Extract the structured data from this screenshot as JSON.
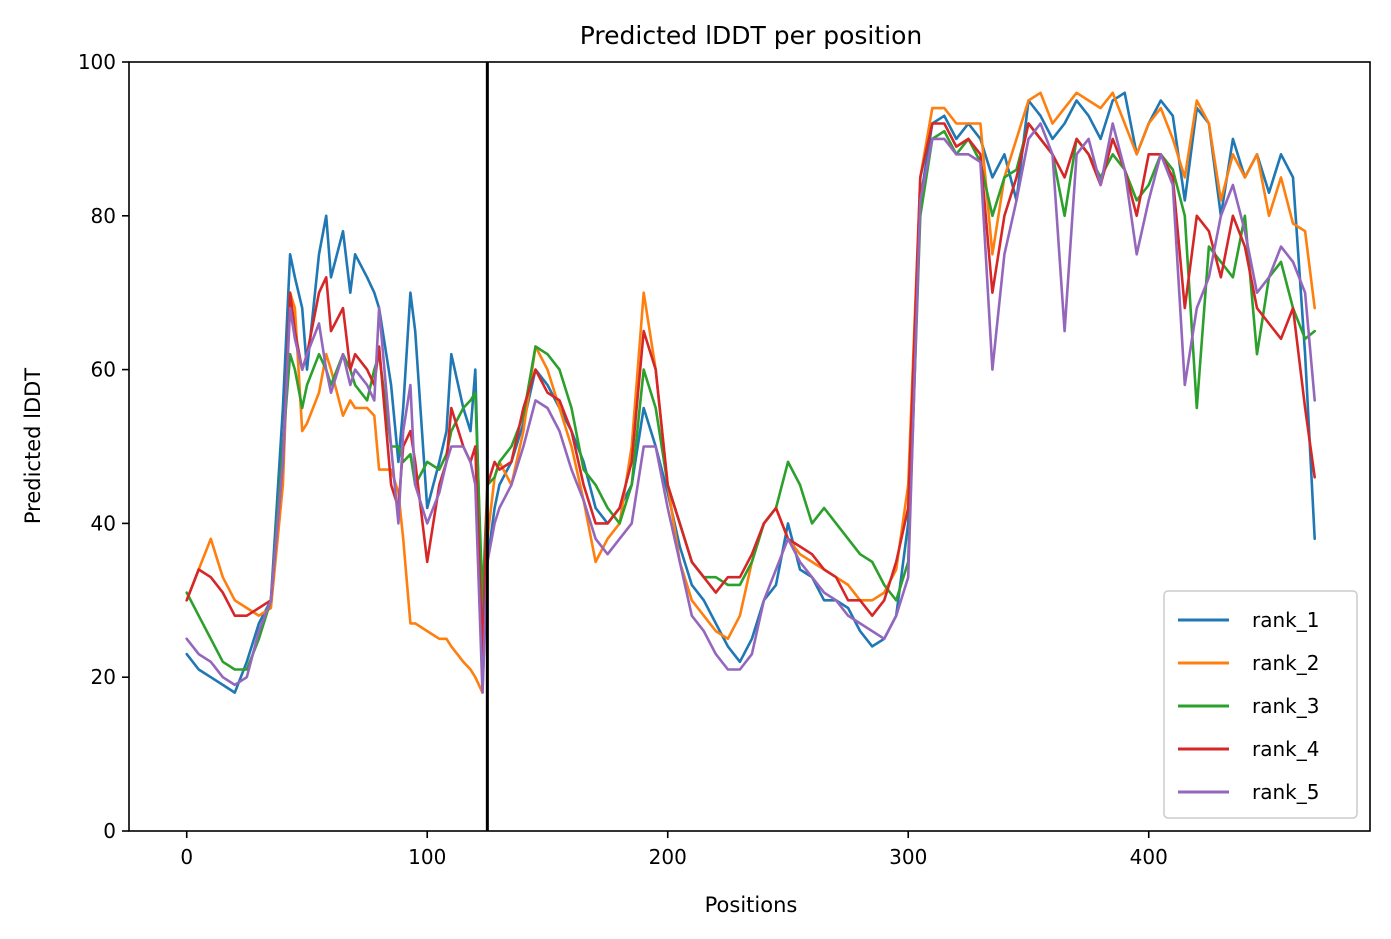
{
  "chart_data": {
    "type": "line",
    "title": "Predicted lDDT per position",
    "xlabel": "Positions",
    "ylabel": "Predicted lDDT",
    "xlim": [
      -24,
      492
    ],
    "ylim": [
      0,
      100
    ],
    "xticks": [
      0,
      100,
      200,
      300,
      400
    ],
    "yticks": [
      0,
      20,
      40,
      60,
      80,
      100
    ],
    "grid": false,
    "legend_position": "lower right",
    "vline": 125,
    "x": [
      0,
      5,
      10,
      15,
      20,
      25,
      30,
      35,
      40,
      43,
      45,
      48,
      50,
      55,
      58,
      60,
      65,
      68,
      70,
      75,
      78,
      80,
      85,
      88,
      90,
      93,
      95,
      100,
      105,
      108,
      110,
      115,
      118,
      120,
      123,
      125,
      128,
      130,
      135,
      140,
      145,
      150,
      155,
      160,
      165,
      170,
      175,
      180,
      185,
      190,
      195,
      200,
      205,
      210,
      215,
      220,
      225,
      230,
      235,
      240,
      245,
      250,
      255,
      260,
      265,
      270,
      275,
      280,
      285,
      290,
      295,
      300,
      305,
      310,
      315,
      320,
      325,
      330,
      335,
      340,
      345,
      350,
      355,
      360,
      365,
      370,
      375,
      380,
      385,
      390,
      395,
      400,
      405,
      410,
      415,
      420,
      425,
      430,
      435,
      440,
      445,
      450,
      455,
      460,
      465,
      469
    ],
    "series": [
      {
        "name": "rank_1",
        "color": "#1f77b4",
        "values": [
          23,
          21,
          20,
          19,
          18,
          22,
          27,
          30,
          55,
          75,
          72,
          68,
          60,
          75,
          80,
          72,
          78,
          70,
          75,
          72,
          70,
          68,
          58,
          48,
          55,
          70,
          65,
          42,
          48,
          52,
          62,
          55,
          52,
          60,
          25,
          35,
          42,
          45,
          48,
          53,
          60,
          58,
          55,
          52,
          48,
          42,
          40,
          42,
          45,
          55,
          50,
          44,
          37,
          32,
          30,
          27,
          24,
          22,
          25,
          30,
          32,
          40,
          34,
          33,
          30,
          30,
          29,
          26,
          24,
          25,
          28,
          40,
          82,
          92,
          93,
          90,
          92,
          90,
          85,
          88,
          82,
          95,
          93,
          90,
          92,
          95,
          93,
          90,
          95,
          96,
          88,
          92,
          95,
          93,
          82,
          94,
          92,
          80,
          90,
          85,
          88,
          83,
          88,
          85,
          62,
          38
        ]
      },
      {
        "name": "rank_2",
        "color": "#ff7f0e",
        "values": [
          30,
          34,
          38,
          33,
          30,
          29,
          28,
          29,
          45,
          70,
          68,
          52,
          53,
          57,
          62,
          60,
          54,
          56,
          55,
          55,
          54,
          47,
          47,
          44,
          38,
          27,
          27,
          26,
          25,
          25,
          24,
          22,
          21,
          20,
          18,
          38,
          46,
          48,
          45,
          52,
          63,
          60,
          55,
          50,
          43,
          35,
          38,
          40,
          50,
          70,
          60,
          45,
          35,
          30,
          28,
          26,
          25,
          28,
          35,
          40,
          42,
          38,
          36,
          35,
          34,
          33,
          32,
          30,
          30,
          31,
          34,
          45,
          85,
          94,
          94,
          92,
          92,
          92,
          75,
          85,
          90,
          95,
          96,
          92,
          94,
          96,
          95,
          94,
          96,
          92,
          88,
          92,
          94,
          90,
          85,
          95,
          92,
          82,
          88,
          85,
          88,
          80,
          85,
          79,
          78,
          68
        ]
      },
      {
        "name": "rank_3",
        "color": "#2ca02c",
        "values": [
          31,
          28,
          25,
          22,
          21,
          21,
          25,
          30,
          50,
          62,
          60,
          55,
          58,
          62,
          60,
          58,
          62,
          60,
          58,
          56,
          60,
          62,
          50,
          50,
          48,
          49,
          45,
          48,
          47,
          49,
          52,
          55,
          56,
          57,
          30,
          45,
          46,
          48,
          50,
          54,
          63,
          62,
          60,
          55,
          47,
          45,
          42,
          40,
          45,
          60,
          55,
          45,
          40,
          35,
          33,
          33,
          32,
          32,
          35,
          40,
          42,
          48,
          45,
          40,
          42,
          40,
          38,
          36,
          35,
          32,
          30,
          35,
          80,
          90,
          91,
          88,
          90,
          87,
          80,
          85,
          86,
          92,
          90,
          88,
          80,
          90,
          88,
          85,
          88,
          86,
          82,
          84,
          88,
          86,
          80,
          55,
          76,
          74,
          72,
          80,
          62,
          72,
          74,
          68,
          64,
          65
        ]
      },
      {
        "name": "rank_4",
        "color": "#d62728",
        "values": [
          30,
          34,
          33,
          31,
          28,
          28,
          29,
          30,
          48,
          70,
          65,
          60,
          62,
          70,
          72,
          65,
          68,
          60,
          62,
          60,
          58,
          63,
          45,
          42,
          50,
          52,
          48,
          35,
          45,
          48,
          55,
          50,
          48,
          50,
          22,
          45,
          48,
          47,
          48,
          55,
          60,
          57,
          56,
          52,
          45,
          40,
          40,
          42,
          48,
          65,
          60,
          45,
          40,
          35,
          33,
          31,
          33,
          33,
          36,
          40,
          42,
          38,
          37,
          36,
          34,
          33,
          30,
          30,
          28,
          30,
          35,
          42,
          85,
          92,
          92,
          89,
          90,
          88,
          70,
          80,
          85,
          92,
          90,
          88,
          85,
          90,
          88,
          84,
          90,
          86,
          80,
          88,
          88,
          85,
          68,
          80,
          78,
          72,
          80,
          76,
          68,
          66,
          64,
          68,
          55,
          46
        ]
      },
      {
        "name": "rank_5",
        "color": "#9467bd",
        "values": [
          25,
          23,
          22,
          20,
          19,
          20,
          26,
          30,
          48,
          68,
          64,
          60,
          62,
          66,
          60,
          57,
          62,
          58,
          60,
          58,
          56,
          68,
          50,
          40,
          52,
          58,
          45,
          40,
          44,
          48,
          50,
          50,
          48,
          45,
          18,
          35,
          40,
          42,
          45,
          50,
          56,
          55,
          52,
          47,
          43,
          38,
          36,
          38,
          40,
          50,
          50,
          42,
          35,
          28,
          26,
          23,
          21,
          21,
          23,
          30,
          34,
          38,
          35,
          33,
          31,
          30,
          28,
          27,
          26,
          25,
          28,
          33,
          82,
          90,
          90,
          88,
          88,
          87,
          60,
          75,
          82,
          90,
          92,
          88,
          65,
          88,
          90,
          84,
          92,
          86,
          75,
          82,
          88,
          84,
          58,
          68,
          72,
          80,
          84,
          78,
          70,
          72,
          76,
          74,
          70,
          56
        ]
      }
    ]
  }
}
